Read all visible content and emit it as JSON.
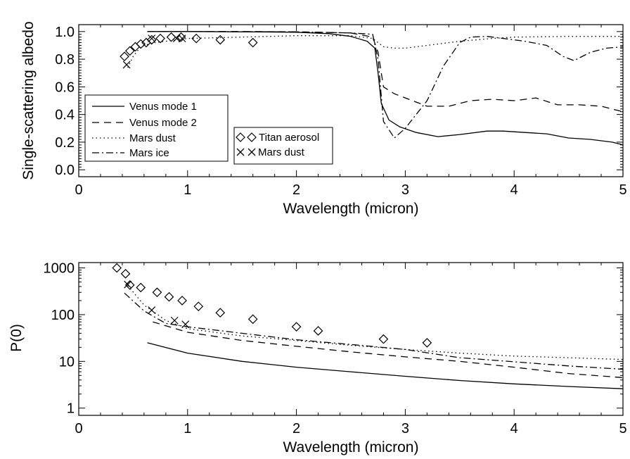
{
  "chart_data": [
    {
      "type": "line",
      "xlabel": "Wavelength (micron)",
      "ylabel": "Single-scattering albedo",
      "xlim": [
        0,
        5
      ],
      "ylim": [
        -0.05,
        1.05
      ],
      "xticks": [
        "0",
        "1",
        "2",
        "3",
        "4",
        "5"
      ],
      "yticks": [
        "0.0",
        "0.2",
        "0.4",
        "0.6",
        "0.8",
        "1.0"
      ],
      "grid": false,
      "legend_lines_placement": "lower-left",
      "legend_markers_placement": "bottom-center",
      "series": [
        {
          "name": "Venus mode 1",
          "style": "solid",
          "x": [
            0.63,
            1.0,
            1.5,
            2.0,
            2.3,
            2.5,
            2.65,
            2.72,
            2.75,
            2.78,
            2.85,
            2.95,
            3.1,
            3.3,
            3.5,
            3.75,
            3.9,
            4.1,
            4.3,
            4.5,
            4.7,
            4.9,
            5.0
          ],
          "y": [
            1.0,
            1.0,
            0.998,
            0.995,
            0.985,
            0.965,
            0.93,
            0.88,
            0.7,
            0.48,
            0.36,
            0.31,
            0.27,
            0.24,
            0.255,
            0.28,
            0.28,
            0.27,
            0.26,
            0.23,
            0.22,
            0.2,
            0.18
          ]
        },
        {
          "name": "Venus mode 2",
          "style": "dashed",
          "x": [
            0.63,
            1.0,
            1.5,
            2.0,
            2.5,
            2.7,
            2.75,
            2.8,
            2.9,
            3.0,
            3.2,
            3.4,
            3.6,
            3.8,
            4.0,
            4.2,
            4.4,
            4.6,
            4.8,
            5.0
          ],
          "y": [
            1.0,
            1.0,
            1.0,
            0.998,
            0.99,
            0.96,
            0.85,
            0.6,
            0.55,
            0.52,
            0.46,
            0.46,
            0.5,
            0.51,
            0.5,
            0.52,
            0.47,
            0.47,
            0.46,
            0.42
          ]
        },
        {
          "name": "Mars dust",
          "style": "dotted",
          "x": [
            0.45,
            0.5,
            0.55,
            0.6,
            0.7,
            0.8,
            1.0,
            1.5,
            2.0,
            2.5,
            2.7,
            2.8,
            2.9,
            3.0,
            3.2,
            3.5,
            3.8,
            4.0,
            4.5,
            5.0
          ],
          "y": [
            0.74,
            0.82,
            0.87,
            0.9,
            0.92,
            0.93,
            0.95,
            0.96,
            0.97,
            0.97,
            0.95,
            0.89,
            0.88,
            0.88,
            0.9,
            0.93,
            0.95,
            0.96,
            0.965,
            0.965
          ]
        },
        {
          "name": "Mars ice",
          "style": "dashdot",
          "x": [
            0.63,
            1.0,
            1.5,
            2.0,
            2.5,
            2.7,
            2.75,
            2.8,
            2.9,
            3.0,
            3.2,
            3.35,
            3.5,
            3.6,
            3.75,
            3.9,
            4.1,
            4.3,
            4.45,
            4.55,
            4.7,
            4.85,
            5.0
          ],
          "y": [
            1.0,
            1.0,
            0.999,
            0.998,
            0.99,
            0.98,
            0.8,
            0.35,
            0.23,
            0.3,
            0.5,
            0.75,
            0.92,
            0.96,
            0.965,
            0.95,
            0.93,
            0.9,
            0.82,
            0.79,
            0.85,
            0.88,
            0.89
          ]
        },
        {
          "name": "Titan aerosol",
          "style": "markers",
          "marker": "diamond",
          "x": [
            0.42,
            0.47,
            0.52,
            0.57,
            0.62,
            0.67,
            0.75,
            0.85,
            0.94,
            1.08,
            1.3,
            1.6
          ],
          "y": [
            0.82,
            0.86,
            0.89,
            0.91,
            0.92,
            0.94,
            0.95,
            0.96,
            0.96,
            0.95,
            0.94,
            0.92
          ]
        },
        {
          "name": "Mars dust",
          "style": "markers",
          "marker": "cross",
          "x": [
            0.44,
            0.67,
            0.9,
            0.95
          ],
          "y": [
            0.76,
            0.95,
            0.95,
            0.95
          ]
        }
      ]
    },
    {
      "type": "line",
      "xlabel": "Wavelength (micron)",
      "ylabel": "P(0)",
      "xlim": [
        0,
        5
      ],
      "ylim": [
        0.7,
        1300
      ],
      "yscale": "log",
      "xticks": [
        "0",
        "1",
        "2",
        "3",
        "4",
        "5"
      ],
      "yticks": [
        "1",
        "10",
        "100",
        "1000"
      ],
      "grid": false,
      "series": [
        {
          "name": "Venus mode 1",
          "style": "solid",
          "x": [
            0.63,
            1.0,
            1.5,
            2.0,
            2.5,
            3.0,
            3.5,
            4.0,
            4.5,
            5.0
          ],
          "y": [
            25,
            15,
            10,
            7.5,
            6,
            4.8,
            3.9,
            3.3,
            2.9,
            2.6
          ]
        },
        {
          "name": "Venus mode 2",
          "style": "dashed",
          "x": [
            0.68,
            1.0,
            1.5,
            2.0,
            2.5,
            3.0,
            3.5,
            4.0,
            4.5,
            5.0
          ],
          "y": [
            70,
            42,
            28,
            21,
            16,
            12.5,
            10,
            7.5,
            5.5,
            4.5
          ]
        },
        {
          "name": "Mars dust",
          "style": "dotted",
          "x": [
            0.45,
            0.6,
            0.8,
            1.0,
            1.5,
            2.0,
            2.5,
            3.0,
            3.5,
            4.0,
            4.5,
            5.0
          ],
          "y": [
            420,
            160,
            75,
            50,
            35,
            28,
            22,
            18,
            15,
            13,
            12,
            11
          ]
        },
        {
          "name": "Mars ice",
          "style": "dashdot",
          "x": [
            0.42,
            0.6,
            0.8,
            1.0,
            1.5,
            2.0,
            2.5,
            3.0,
            3.5,
            4.0,
            4.5,
            5.0
          ],
          "y": [
            290,
            120,
            65,
            55,
            40,
            29,
            23,
            18,
            12,
            9.8,
            8,
            6.8
          ]
        },
        {
          "name": "Titan aerosol",
          "style": "markers",
          "marker": "diamond",
          "x": [
            0.35,
            0.43,
            0.47,
            0.57,
            0.72,
            0.83,
            0.95,
            1.1,
            1.3,
            1.6,
            2.0,
            2.2,
            2.8,
            3.2
          ],
          "y": [
            1000,
            750,
            430,
            380,
            300,
            240,
            200,
            150,
            110,
            80,
            55,
            45,
            30,
            25
          ]
        },
        {
          "name": "Mars dust",
          "style": "markers",
          "marker": "cross",
          "x": [
            0.45,
            0.67,
            0.88,
            0.98
          ],
          "y": [
            440,
            125,
            75,
            62
          ]
        }
      ]
    }
  ]
}
